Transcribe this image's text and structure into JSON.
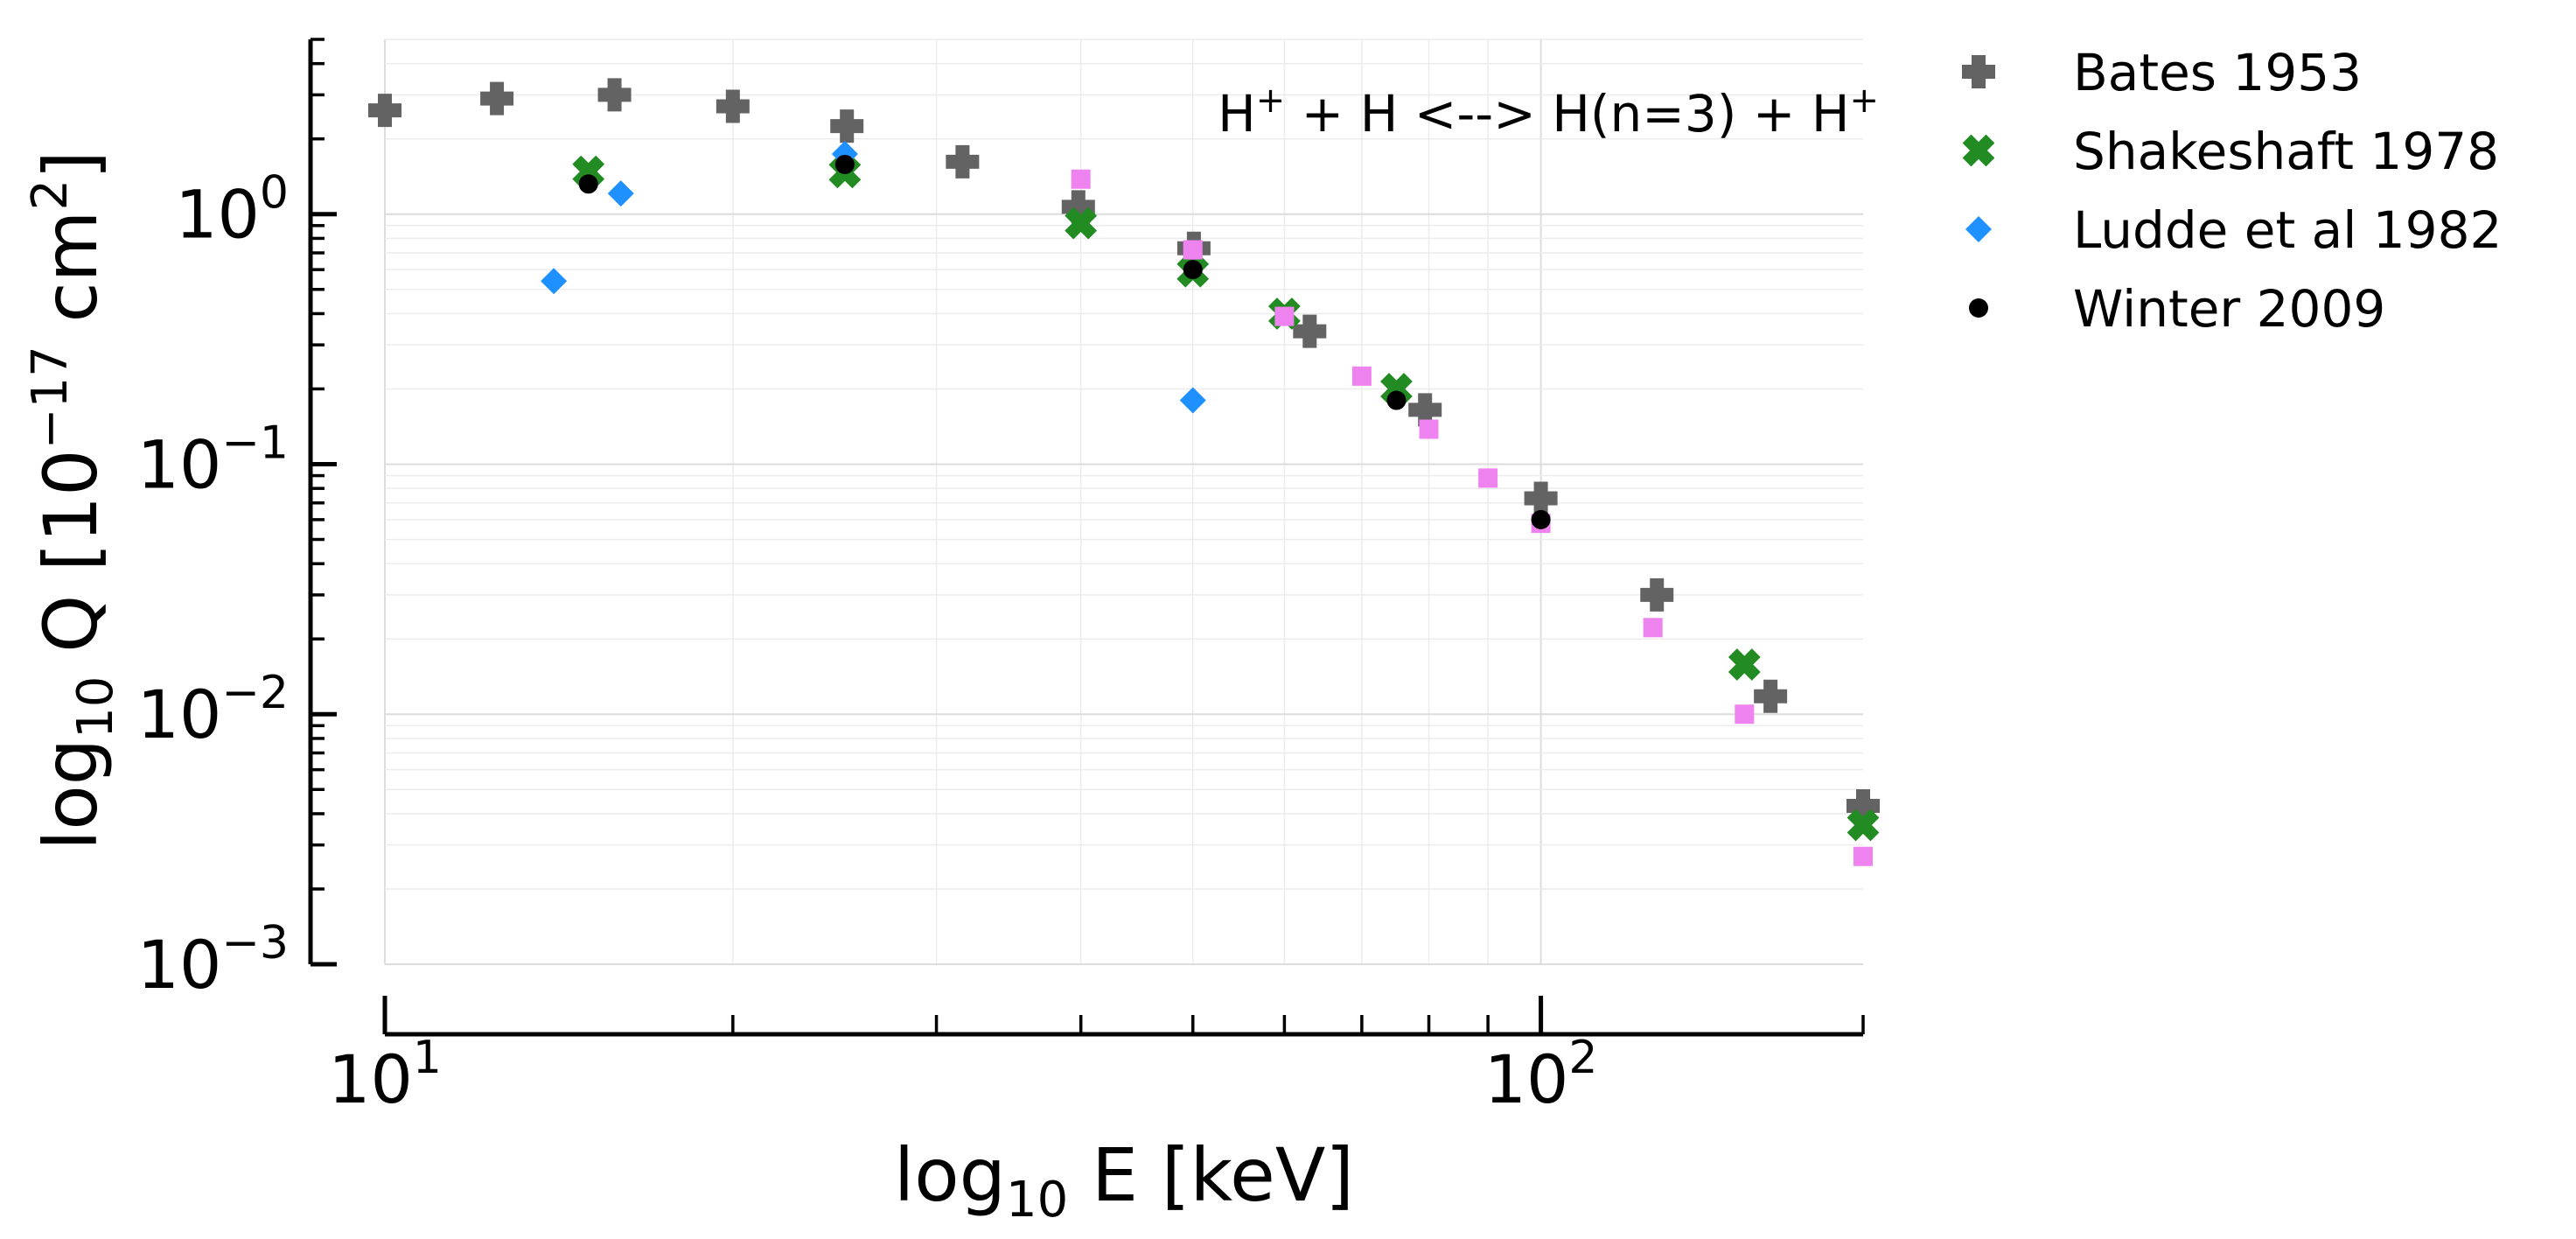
{
  "chart_data": {
    "type": "scatter",
    "title": "",
    "annotation": {
      "text_prefix": "H",
      "plus_sup": "+",
      "text_middle": " + H <--> H(n=3) + H",
      "plus_sup_end": "+"
    },
    "xlabel": {
      "prefix": "log",
      "sub": "10",
      "suffix": " E [keV]"
    },
    "ylabel": {
      "prefix": "log",
      "sub": "10",
      "suffix": " Q [10",
      "exp": "−17",
      "unit": " cm",
      "unit_exp": "2",
      "close": "]"
    },
    "xscale": "log",
    "yscale": "log",
    "xlim": [
      10,
      190
    ],
    "ylim": [
      0.001,
      5
    ],
    "grid": true,
    "legend_position": "outside-right",
    "x_tick_labels": [
      {
        "value": 10,
        "base": "10",
        "exp": "1"
      },
      {
        "value": 100,
        "base": "10",
        "exp": "2"
      }
    ],
    "y_tick_labels": [
      {
        "value": 1,
        "base": "10",
        "exp": "0"
      },
      {
        "value": 0.1,
        "base": "10",
        "exp": "−1"
      },
      {
        "value": 0.01,
        "base": "10",
        "exp": "−2"
      },
      {
        "value": 0.001,
        "base": "10",
        "exp": "−3"
      }
    ],
    "series": [
      {
        "name": "Bates 1953",
        "marker": "plus",
        "color": "#636363",
        "in_legend": true,
        "points": [
          [
            10,
            2.6
          ],
          [
            12.5,
            2.9
          ],
          [
            15.8,
            3.0
          ],
          [
            20,
            2.7
          ],
          [
            25.1,
            2.25
          ],
          [
            31.6,
            1.62
          ],
          [
            39.8,
            1.07
          ],
          [
            50.1,
            0.73
          ],
          [
            63.1,
            0.34
          ],
          [
            79.4,
            0.165
          ],
          [
            100,
            0.073
          ],
          [
            126,
            0.03
          ],
          [
            158,
            0.0118
          ],
          [
            190,
            0.0043
          ]
        ]
      },
      {
        "name": "Shakeshaft 1978",
        "marker": "x",
        "color": "#228b22",
        "in_legend": true,
        "points": [
          [
            15,
            1.48
          ],
          [
            25,
            1.47
          ],
          [
            40,
            0.92
          ],
          [
            50,
            0.59
          ],
          [
            60,
            0.4
          ],
          [
            75,
            0.2
          ],
          [
            150,
            0.0158
          ],
          [
            190,
            0.0036
          ]
        ]
      },
      {
        "name": "Ludde et al 1982",
        "marker": "diamond",
        "color": "#1e90ff",
        "in_legend": true,
        "points": [
          [
            14,
            0.54
          ],
          [
            16,
            1.21
          ],
          [
            25,
            1.74
          ],
          [
            50,
            0.18
          ]
        ]
      },
      {
        "name": "Winter 2009",
        "marker": "circle",
        "color": "#000000",
        "in_legend": true,
        "points": [
          [
            15,
            1.32
          ],
          [
            25,
            1.58
          ],
          [
            50,
            0.6
          ],
          [
            75,
            0.18
          ],
          [
            100,
            0.06
          ]
        ]
      },
      {
        "name": "",
        "marker": "square",
        "color": "#ee82ee",
        "in_legend": false,
        "points": [
          [
            40,
            1.38
          ],
          [
            50,
            0.72
          ],
          [
            60,
            0.39
          ],
          [
            70,
            0.225
          ],
          [
            80,
            0.138
          ],
          [
            90,
            0.088
          ],
          [
            100,
            0.058
          ],
          [
            125,
            0.0222
          ],
          [
            150,
            0.01
          ],
          [
            190,
            0.0027
          ]
        ]
      }
    ]
  }
}
